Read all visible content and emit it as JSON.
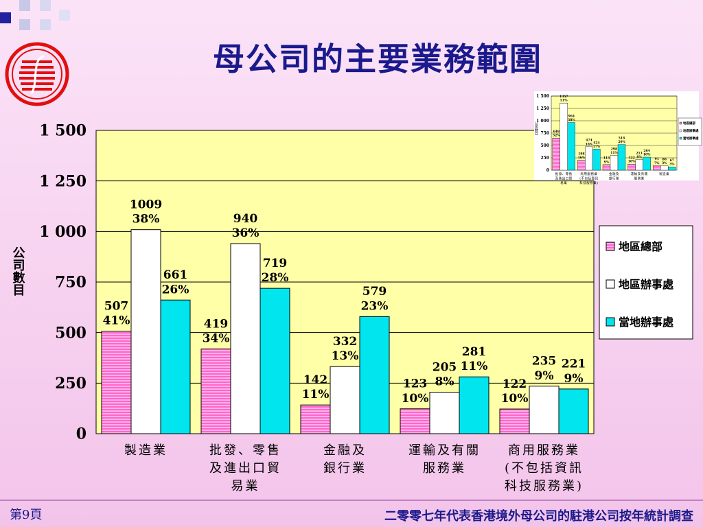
{
  "title": "母公司的主要業務範圍",
  "footer": {
    "page": "第9頁",
    "source": "二零零七年代表香港境外母公司的駐港公司按年統計調查"
  },
  "colors": {
    "title": "#1a1a8c",
    "plot_bg": "#ffffa8",
    "regional_hq": "#ff66cc",
    "regional_office": "#ffffff",
    "local_office": "#00e5ee",
    "logo_red": "#e01010"
  },
  "chart_data": {
    "type": "bar",
    "ylabel": "公司數目",
    "ylim": [
      0,
      1500
    ],
    "yticks": [
      "0",
      "250",
      "500",
      "750",
      "1 000",
      "1 250",
      "1 500"
    ],
    "ytick_values": [
      0,
      250,
      500,
      750,
      1000,
      1250,
      1500
    ],
    "categories": [
      [
        "製造業"
      ],
      [
        "批發、零售",
        "及進出口貿",
        "易業"
      ],
      [
        "金融及",
        "銀行業"
      ],
      [
        "運輸及有關",
        "服務業"
      ],
      [
        "商用服務業",
        "(不包括資訊",
        "科技服務業)"
      ]
    ],
    "series": [
      {
        "name": "地區總部",
        "values": [
          507,
          419,
          142,
          123,
          122
        ],
        "pct": [
          "41%",
          "34%",
          "11%",
          "10%",
          "10%"
        ]
      },
      {
        "name": "地區辦事處",
        "values": [
          1009,
          940,
          332,
          205,
          235
        ],
        "pct": [
          "38%",
          "36%",
          "13%",
          "8%",
          "9%"
        ]
      },
      {
        "name": "當地辦事處",
        "values": [
          661,
          719,
          579,
          281,
          221
        ],
        "pct": [
          "26%",
          "28%",
          "23%",
          "11%",
          "9%"
        ]
      }
    ],
    "grid": true,
    "legend": "right"
  },
  "inset_chart": {
    "type": "bar",
    "ylabel": "公司數目",
    "ylim": [
      0,
      1500
    ],
    "yticks": [
      "0",
      "250",
      "500",
      "750",
      "1 000",
      "1 250",
      "1 500"
    ],
    "ytick_values": [
      0,
      250,
      500,
      750,
      1000,
      1250,
      1500
    ],
    "categories": [
      [
        "批發、零售",
        "及進出口貿",
        "易業"
      ],
      [
        "商用服務業",
        "(不包括資訊",
        "科技服務業)"
      ],
      [
        "金融及",
        "銀行業"
      ],
      [
        "運輸及有關",
        "服務業"
      ],
      [
        "製造業"
      ]
    ],
    "series": [
      {
        "name": "地區總部",
        "values": [
          649,
          198,
          113,
          122,
          91
        ],
        "pct": [
          "52%",
          "16%",
          "9%",
          "10%",
          "7%"
        ]
      },
      {
        "name": "地區辦事處",
        "values": [
          1357,
          474,
          298,
          211,
          88
        ],
        "pct": [
          "51%",
          "18%",
          "11%",
          "8%",
          "3%"
        ]
      },
      {
        "name": "當地辦事處",
        "values": [
          964,
          424,
          518,
          264,
          67
        ],
        "pct": [
          "38%",
          "17%",
          "20%",
          "10%",
          "3%"
        ]
      }
    ],
    "grid": true,
    "legend": "right"
  }
}
